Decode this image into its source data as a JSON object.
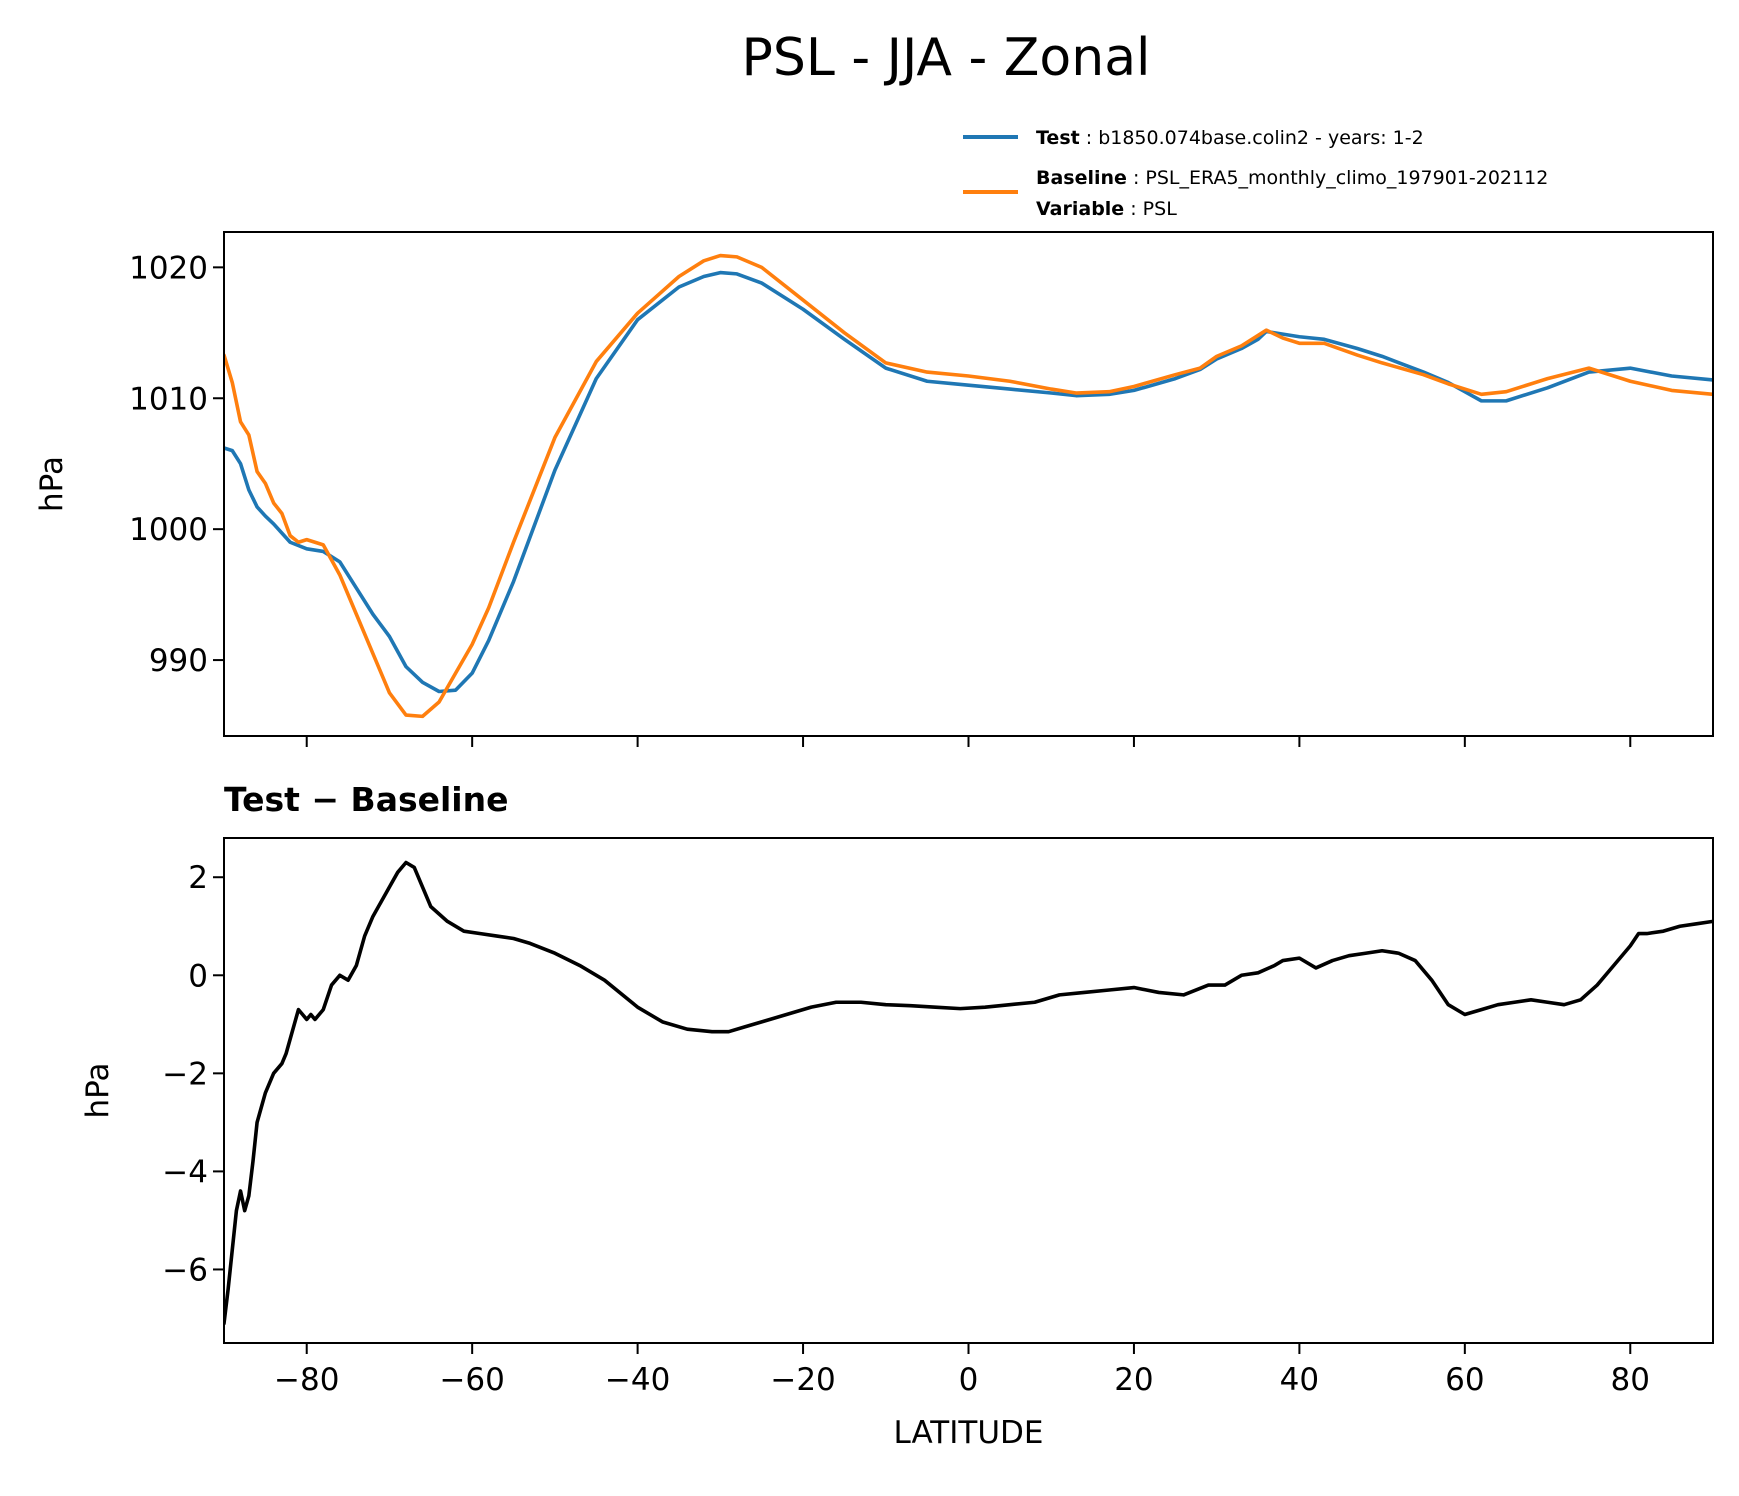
{
  "chart_data": [
    {
      "type": "line",
      "title": "PSL - JJA - Zonal",
      "xlabel": "",
      "ylabel": "hPa",
      "xlim": [
        -90,
        90
      ],
      "ylim": [
        984.2,
        1022.7
      ],
      "yticks": [
        990,
        1000,
        1010,
        1020
      ],
      "xticks": [
        -80,
        -60,
        -40,
        -20,
        0,
        20,
        40,
        60,
        80
      ],
      "legend_position": "top-right, above plot",
      "legend": [
        {
          "lines": [
            {
              "key": "Test",
              "value": "b1850.074base.colin2 - years: 1-2"
            }
          ],
          "color": "#1f77b4"
        },
        {
          "lines": [
            {
              "key": "Baseline",
              "value": "PSL_ERA5_monthly_climo_197901-202112"
            },
            {
              "key": "Variable",
              "value": "PSL"
            }
          ],
          "color": "#ff7f0e"
        }
      ],
      "series": [
        {
          "name": "Test",
          "color": "#1f77b4",
          "x": [
            -90,
            -89,
            -88,
            -87,
            -86,
            -85,
            -84,
            -82,
            -80,
            -78,
            -76,
            -74,
            -72,
            -70,
            -68,
            -66,
            -64,
            -62,
            -60,
            -58,
            -55,
            -50,
            -45,
            -40,
            -35,
            -32,
            -30,
            -28,
            -25,
            -20,
            -15,
            -10,
            -5,
            0,
            5,
            10,
            13,
            17,
            20,
            25,
            28,
            30,
            33,
            35,
            36,
            38,
            40,
            43,
            47,
            50,
            55,
            58,
            60,
            62,
            65,
            70,
            75,
            80,
            85,
            90
          ],
          "y": [
            1006.2,
            1006,
            1005,
            1003,
            1001.7,
            1001,
            1000.4,
            999,
            998.5,
            998.3,
            997.5,
            995.5,
            993.5,
            991.8,
            989.5,
            988.3,
            987.6,
            987.7,
            989,
            991.5,
            996,
            1004.5,
            1011.5,
            1016,
            1018.5,
            1019.3,
            1019.6,
            1019.5,
            1018.8,
            1016.8,
            1014.5,
            1012.3,
            1011.3,
            1011,
            1010.7,
            1010.4,
            1010.2,
            1010.3,
            1010.6,
            1011.5,
            1012.2,
            1013,
            1013.8,
            1014.5,
            1015.1,
            1014.9,
            1014.7,
            1014.5,
            1013.8,
            1013.2,
            1012,
            1011.2,
            1010.5,
            1009.8,
            1009.8,
            1010.8,
            1012,
            1012.3,
            1011.7,
            1011.4
          ]
        },
        {
          "name": "Baseline",
          "color": "#ff7f0e",
          "x": [
            -90,
            -89,
            -88,
            -87,
            -86,
            -85,
            -84,
            -83,
            -82,
            -81,
            -80,
            -78,
            -76,
            -74,
            -72,
            -70,
            -68,
            -66,
            -64,
            -62,
            -60,
            -58,
            -55,
            -50,
            -45,
            -40,
            -35,
            -32,
            -30,
            -28,
            -25,
            -20,
            -15,
            -10,
            -5,
            0,
            5,
            10,
            13,
            17,
            20,
            25,
            28,
            30,
            33,
            35,
            36,
            38,
            40,
            43,
            47,
            50,
            55,
            58,
            60,
            62,
            65,
            70,
            75,
            80,
            85,
            90
          ],
          "y": [
            1013.3,
            1011.2,
            1008.2,
            1007.2,
            1004.4,
            1003.5,
            1002,
            1001.2,
            999.5,
            999,
            999.2,
            998.8,
            996.5,
            993.5,
            990.5,
            987.5,
            985.8,
            985.7,
            986.8,
            989,
            991.2,
            994,
            999,
            1007,
            1012.8,
            1016.5,
            1019.3,
            1020.5,
            1020.9,
            1020.8,
            1020,
            1017.5,
            1015,
            1012.7,
            1012,
            1011.7,
            1011.3,
            1010.7,
            1010.4,
            1010.5,
            1010.9,
            1011.8,
            1012.3,
            1013.2,
            1014,
            1014.8,
            1015.2,
            1014.6,
            1014.2,
            1014.2,
            1013.3,
            1012.7,
            1011.8,
            1011.1,
            1010.7,
            1010.3,
            1010.5,
            1011.5,
            1012.3,
            1011.3,
            1010.6,
            1010.3
          ]
        }
      ]
    },
    {
      "type": "line",
      "title": "Test − Baseline",
      "xlabel": "LATITUDE",
      "ylabel": "hPa",
      "xlim": [
        -90,
        90
      ],
      "ylim": [
        -7.5,
        2.8
      ],
      "yticks": [
        -6,
        -4,
        -2,
        0,
        2
      ],
      "xticks": [
        -80,
        -60,
        -40,
        -20,
        0,
        20,
        40,
        60,
        80
      ],
      "series": [
        {
          "name": "Test − Baseline",
          "color": "#000000",
          "x": [
            -90,
            -89.5,
            -89,
            -88.5,
            -88,
            -87.5,
            -87,
            -86.5,
            -86,
            -85.5,
            -85,
            -84,
            -83,
            -82.5,
            -82,
            -81.5,
            -81,
            -80.5,
            -80,
            -79.5,
            -79,
            -78,
            -77,
            -76,
            -75,
            -74,
            -73,
            -72,
            -71,
            -70,
            -69,
            -68,
            -67,
            -66,
            -65,
            -63,
            -61,
            -59,
            -57,
            -55,
            -53,
            -50,
            -47,
            -44,
            -40,
            -37,
            -34,
            -31,
            -29,
            -27,
            -25,
            -22,
            -19,
            -16,
            -13,
            -10,
            -7,
            -4,
            -1,
            2,
            5,
            8,
            11,
            14,
            17,
            20,
            23,
            26,
            29,
            31,
            33,
            35,
            37,
            38,
            40,
            42,
            44,
            46,
            48,
            50,
            52,
            54,
            56,
            58,
            60,
            62,
            64,
            66,
            68,
            70,
            72,
            74,
            76,
            78,
            80,
            81,
            82,
            84,
            86,
            88,
            90
          ],
          "y": [
            -7.1,
            -6.4,
            -5.6,
            -4.8,
            -4.4,
            -4.8,
            -4.5,
            -3.8,
            -3,
            -2.7,
            -2.4,
            -2,
            -1.8,
            -1.6,
            -1.3,
            -1,
            -0.7,
            -0.8,
            -0.9,
            -0.8,
            -0.9,
            -0.7,
            -0.2,
            0,
            -0.1,
            0.2,
            0.8,
            1.2,
            1.5,
            1.8,
            2.1,
            2.3,
            2.2,
            1.8,
            1.4,
            1.1,
            0.9,
            0.85,
            0.8,
            0.75,
            0.65,
            0.45,
            0.2,
            -0.1,
            -0.65,
            -0.95,
            -1.1,
            -1.15,
            -1.15,
            -1.05,
            -0.95,
            -0.8,
            -0.65,
            -0.55,
            -0.55,
            -0.6,
            -0.62,
            -0.65,
            -0.68,
            -0.65,
            -0.6,
            -0.55,
            -0.4,
            -0.35,
            -0.3,
            -0.25,
            -0.35,
            -0.4,
            -0.2,
            -0.2,
            0,
            0.05,
            0.2,
            0.3,
            0.35,
            0.15,
            0.3,
            0.4,
            0.45,
            0.5,
            0.45,
            0.3,
            -0.1,
            -0.6,
            -0.8,
            -0.7,
            -0.6,
            -0.55,
            -0.5,
            -0.55,
            -0.6,
            -0.5,
            -0.2,
            0.2,
            0.6,
            0.85,
            0.85,
            0.9,
            1.0,
            1.05,
            1.1
          ]
        }
      ]
    }
  ]
}
